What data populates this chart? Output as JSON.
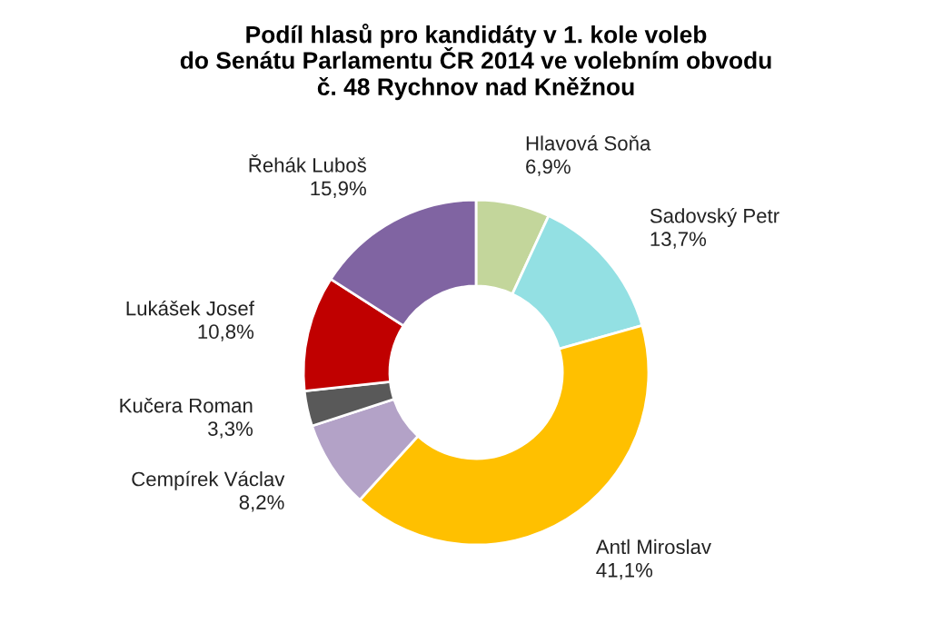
{
  "chart_data": {
    "type": "donut",
    "title": "Podíl hlasů pro kandidáty v 1. kole voleb\ndo Senátu Parlamentu ČR 2014 ve volebním obvodu\nč. 48 Rychnov nad Kněžnou",
    "categories": [
      "Hlavová Soňa",
      "Sadovský Petr",
      "Antl Miroslav",
      "Cempírek Václav",
      "Kučera Roman",
      "Lukášek Josef",
      "Řehák Luboš"
    ],
    "values": [
      6.9,
      13.7,
      41.1,
      8.2,
      3.3,
      10.8,
      15.9
    ],
    "value_labels": [
      "6,9%",
      "13,7%",
      "41,1%",
      "8,2%",
      "3,3%",
      "10,8%",
      "15,9%"
    ],
    "colors": [
      "#c3d69b",
      "#93e0e3",
      "#ffc000",
      "#b3a2c7",
      "#595959",
      "#c00000",
      "#8064a2"
    ],
    "legend": false
  }
}
